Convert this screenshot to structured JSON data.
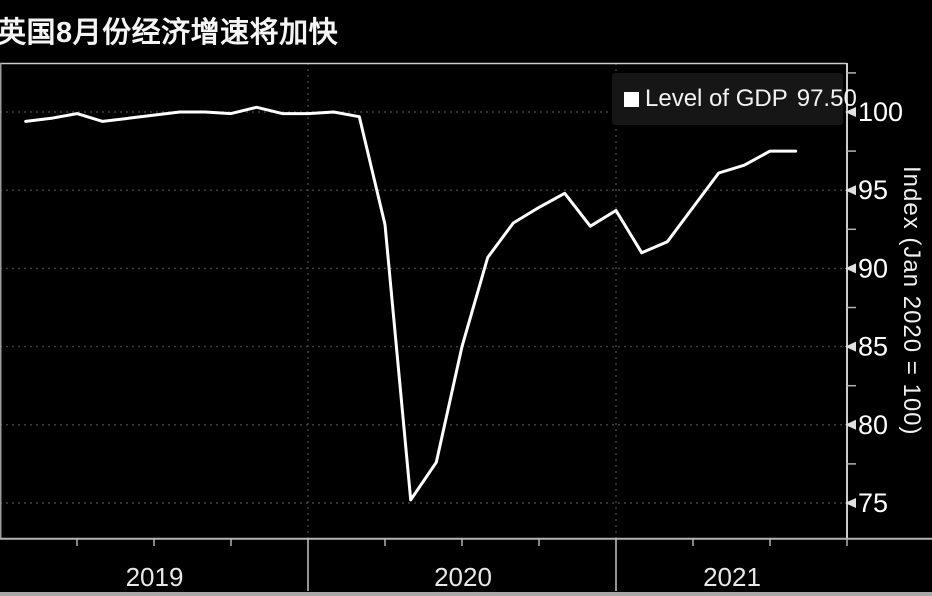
{
  "title": "英国8月份经济增速将加快",
  "legend": {
    "label": "Level of GDP",
    "value": "97.50"
  },
  "y_axis": {
    "title": "Index (Jan 2020 = 100)"
  },
  "x_axis": {
    "year_labels": [
      "2019",
      "2020",
      "2021"
    ]
  },
  "colors": {
    "background": "#000000",
    "line": "#ffffff",
    "grid_dotted": "#424242",
    "axis": "#b3b3b3",
    "frame": "#cccccc",
    "tick_text": "#ffffff",
    "legend_bg": "#161616",
    "bottom_bar": "#a8a8a8"
  },
  "chart_data": {
    "type": "line",
    "title": "英国8月份经济增速将加快",
    "ylabel": "Index (Jan 2020 = 100)",
    "legend_position": "top-right",
    "grid": "dotted-major",
    "ylim": [
      72.8,
      103.1
    ],
    "y_major_ticks": [
      75,
      80,
      85,
      90,
      95,
      100
    ],
    "y_minor_ticks": [
      77.5,
      82.5,
      87.5,
      92.5,
      97.5,
      102.5
    ],
    "x_year_boundary_months": [
      12,
      24
    ],
    "x_quarter_tick_months": [
      3,
      6,
      9,
      15,
      18,
      21,
      27,
      30,
      33
    ],
    "x": [
      "Jan 2019",
      "Feb 2019",
      "Mar 2019",
      "Apr 2019",
      "May 2019",
      "Jun 2019",
      "Jul 2019",
      "Aug 2019",
      "Sep 2019",
      "Oct 2019",
      "Nov 2019",
      "Dec 2019",
      "Jan 2020",
      "Feb 2020",
      "Mar 2020",
      "Apr 2020",
      "May 2020",
      "Jun 2020",
      "Jul 2020",
      "Aug 2020",
      "Sep 2020",
      "Oct 2020",
      "Nov 2020",
      "Dec 2020",
      "Jan 2021",
      "Feb 2021",
      "Mar 2021",
      "Apr 2021",
      "May 2021",
      "Jun 2021",
      "Jul 2021"
    ],
    "series": [
      {
        "name": "Level of GDP",
        "color": "#ffffff",
        "last_value": 97.5,
        "values": [
          99.4,
          99.6,
          99.9,
          99.4,
          99.6,
          99.8,
          100.0,
          100.0,
          99.9,
          100.3,
          99.9,
          99.9,
          100.0,
          99.7,
          92.8,
          75.2,
          77.6,
          85.0,
          90.7,
          92.9,
          93.9,
          94.8,
          92.7,
          93.7,
          91.0,
          91.7,
          93.9,
          96.1,
          96.6,
          97.5,
          97.5
        ]
      }
    ]
  }
}
